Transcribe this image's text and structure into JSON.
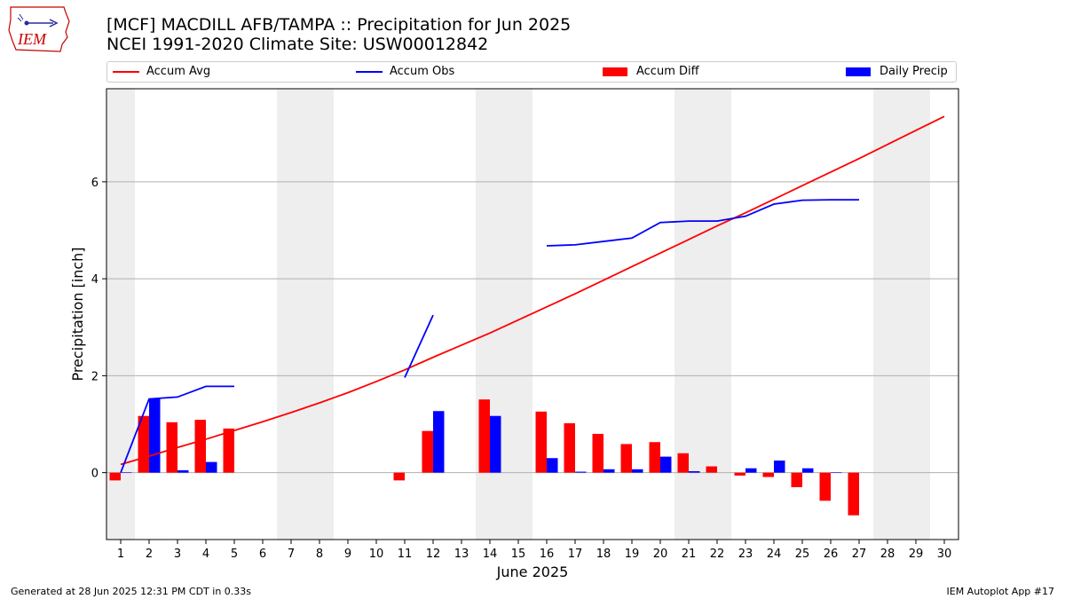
{
  "header": {
    "title_line1": "[MCF] MACDILL AFB/TAMPA :: Precipitation for Jun 2025",
    "title_line2": "NCEI 1991-2020 Climate Site: USW00012842"
  },
  "logo": {
    "text": "IEM",
    "icon": "iem-iowa-logo-icon"
  },
  "footer": {
    "left": "Generated at 28 Jun 2025 12:31 PM CDT in 0.33s",
    "right": "IEM Autoplot App #17"
  },
  "colors": {
    "avg": "#ff0000",
    "obs": "#0000ff",
    "diff": "#ff0000",
    "daily": "#0000ff",
    "weekend": "#eeeeee"
  },
  "chart_data": {
    "type": "bar",
    "xlabel": "June 2025",
    "ylabel": "Precipitation [inch]",
    "xlim": [
      0.5,
      30.5
    ],
    "ylim": [
      -1.38,
      7.92
    ],
    "yticks": [
      0,
      2,
      4,
      6
    ],
    "xticks": [
      1,
      2,
      3,
      4,
      5,
      6,
      7,
      8,
      9,
      10,
      11,
      12,
      13,
      14,
      15,
      16,
      17,
      18,
      19,
      20,
      21,
      22,
      23,
      24,
      25,
      26,
      27,
      28,
      29,
      30
    ],
    "grid": "horizontal",
    "legend_position": "top",
    "legend": [
      "Accum Avg",
      "Accum Obs",
      "Accum Diff",
      "Daily Precip"
    ],
    "weekend_spans": [
      [
        0.5,
        1.5
      ],
      [
        6.5,
        8.5
      ],
      [
        13.5,
        15.5
      ],
      [
        20.5,
        22.5
      ],
      [
        27.5,
        29.5
      ]
    ],
    "series": [
      {
        "name": "Accum Avg",
        "kind": "line",
        "x": [
          1,
          2,
          3,
          4,
          5,
          6,
          7,
          8,
          9,
          10,
          11,
          12,
          13,
          14,
          15,
          16,
          17,
          18,
          19,
          20,
          21,
          22,
          23,
          24,
          25,
          26,
          27,
          28,
          29,
          30
        ],
        "values": [
          0.17,
          0.34,
          0.52,
          0.69,
          0.87,
          1.05,
          1.24,
          1.44,
          1.65,
          1.88,
          2.12,
          2.38,
          2.63,
          2.88,
          3.15,
          3.42,
          3.69,
          3.97,
          4.25,
          4.53,
          4.81,
          5.09,
          5.36,
          5.64,
          5.92,
          6.2,
          6.48,
          6.77,
          7.06,
          7.35
        ]
      },
      {
        "name": "Accum Obs",
        "kind": "line",
        "x": [
          1,
          2,
          3,
          4,
          5,
          6,
          7,
          8,
          9,
          10,
          11,
          12,
          13,
          14,
          15,
          16,
          17,
          18,
          19,
          20,
          21,
          22,
          23,
          24,
          25,
          26,
          27
        ],
        "values": [
          0.0,
          1.52,
          1.56,
          1.78,
          1.78,
          null,
          null,
          null,
          null,
          null,
          1.96,
          3.25,
          null,
          null,
          null,
          4.68,
          4.7,
          4.77,
          4.84,
          5.16,
          5.19,
          5.19,
          5.29,
          5.54,
          5.62,
          5.63,
          5.63
        ]
      },
      {
        "name": "Accum Diff",
        "kind": "bar",
        "x": [
          1,
          2,
          3,
          4,
          5,
          11,
          12,
          14,
          16,
          17,
          18,
          19,
          20,
          21,
          22,
          23,
          24,
          25,
          26,
          27
        ],
        "values": [
          -0.16,
          1.17,
          1.04,
          1.09,
          0.91,
          -0.16,
          0.86,
          1.51,
          1.26,
          1.02,
          0.8,
          0.59,
          0.63,
          0.4,
          0.13,
          -0.06,
          -0.09,
          -0.3,
          -0.58,
          -0.88
        ]
      },
      {
        "name": "Daily Precip",
        "kind": "bar",
        "x": [
          1,
          2,
          3,
          4,
          12,
          14,
          16,
          17,
          18,
          19,
          20,
          21,
          23,
          24,
          25,
          26
        ],
        "values": [
          0.01,
          1.52,
          0.05,
          0.22,
          1.27,
          1.17,
          0.3,
          0.02,
          0.07,
          0.07,
          0.33,
          0.03,
          0.09,
          0.25,
          0.09,
          0.01
        ]
      }
    ],
    "obs_segments": [
      [
        1,
        5
      ],
      [
        11,
        12
      ],
      [
        16,
        27
      ]
    ]
  }
}
